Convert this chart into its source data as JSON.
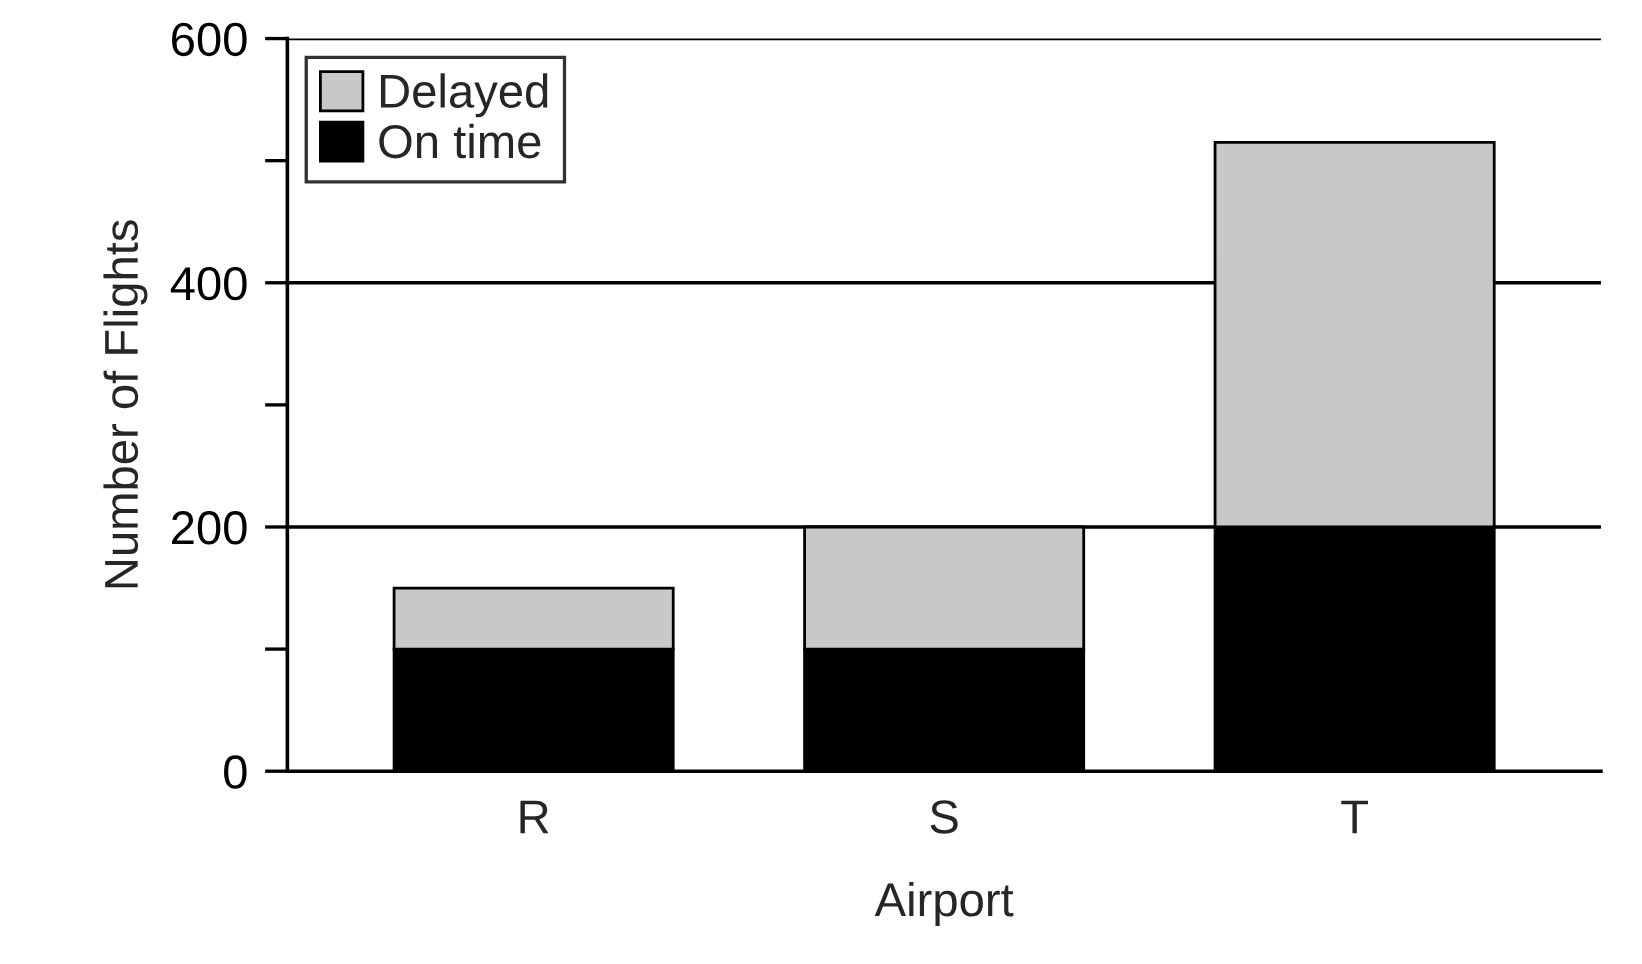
{
  "chart_data": {
    "type": "bar",
    "xlabel": "Airport",
    "ylabel": "Number of Flights",
    "categories": [
      "R",
      "S",
      "T"
    ],
    "stacked": true,
    "series": [
      {
        "name": "On time",
        "color": "#000000",
        "values": [
          100,
          100,
          200
        ]
      },
      {
        "name": "Delayed",
        "color": "#c8c8c8",
        "values": [
          50,
          100,
          315
        ]
      }
    ],
    "ylim": [
      0,
      600
    ],
    "yticks": [
      0,
      {
        "value": 100,
        "label": null
      },
      200,
      {
        "value": 300,
        "label": null
      },
      400,
      {
        "value": 500,
        "label": null
      },
      600
    ],
    "grid": "y",
    "legend": "top left"
  }
}
